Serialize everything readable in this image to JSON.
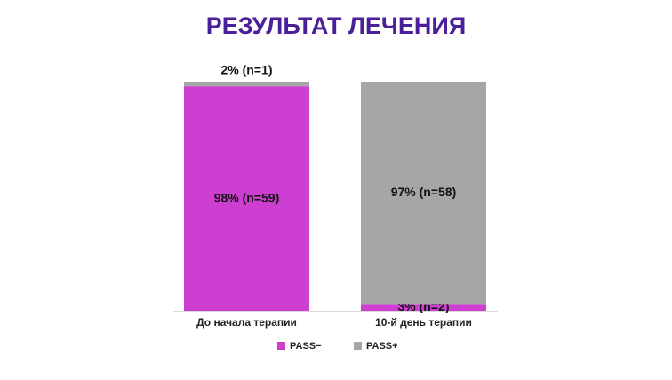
{
  "chart_data": {
    "type": "stacked-bar",
    "title": "РЕЗУЛЬТАТ ЛЕЧЕНИЯ",
    "categories": [
      "До начала терапии",
      "10-й день терапии"
    ],
    "series": [
      {
        "name": "PASS−",
        "color": "#cc3fd1",
        "values": [
          98,
          3
        ],
        "value_labels": [
          "98% (n=59)",
          "3% (n=2)"
        ]
      },
      {
        "name": "PASS+",
        "color": "#a6a6a6",
        "values": [
          2,
          97
        ],
        "value_labels": [
          "2% (n=1)",
          "97% (n=58)"
        ]
      }
    ],
    "ylim": [
      0,
      100
    ],
    "legend": "bottom"
  }
}
